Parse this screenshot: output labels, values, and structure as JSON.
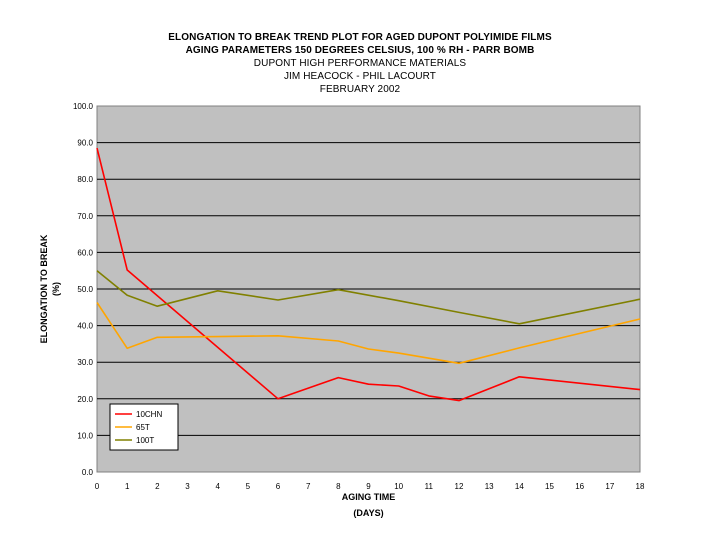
{
  "titles": {
    "line1": "ELONGATION TO BREAK TREND PLOT FOR AGED DUPONT POLYIMIDE FILMS",
    "line2": "AGING PARAMETERS 150 DEGREES CELSIUS, 100 % RH - PARR BOMB",
    "line3": "DUPONT HIGH PERFORMANCE MATERIALS",
    "line4": "JIM HEACOCK - PHIL LACOURT",
    "line5": "FEBRUARY 2002"
  },
  "colors": {
    "plot_background": "#c0c0c0",
    "gridline": "#000000",
    "10CHN": "#ff0000",
    "65T": "#ffa500",
    "100T": "#808000"
  },
  "chart_data": {
    "type": "line",
    "xlabel": "AGING TIME",
    "xlabel_unit": "(DAYS)",
    "ylabel": "ELONGATION TO BREAK",
    "ylabel_unit": "(%)",
    "xlim": [
      0,
      18
    ],
    "ylim": [
      0,
      100
    ],
    "x_ticks": [
      0,
      1,
      2,
      3,
      4,
      5,
      6,
      7,
      8,
      9,
      10,
      11,
      12,
      13,
      14,
      15,
      16,
      17,
      18
    ],
    "y_ticks": [
      "0.0",
      "10.0",
      "20.0",
      "30.0",
      "40.0",
      "50.0",
      "60.0",
      "70.0",
      "80.0",
      "90.0",
      "100.0"
    ],
    "gridlines": "horizontal",
    "legend_position": "bottom-left",
    "series": [
      {
        "name": "10CHN",
        "color": "#ff0000",
        "points": [
          [
            0,
            88.5
          ],
          [
            1,
            55.2
          ],
          [
            6,
            20.0
          ],
          [
            8,
            25.8
          ],
          [
            9,
            24.0
          ],
          [
            10,
            23.5
          ],
          [
            11,
            20.8
          ],
          [
            12,
            19.5
          ],
          [
            14,
            26.0
          ],
          [
            18,
            22.5
          ]
        ]
      },
      {
        "name": "65T",
        "color": "#ffa500",
        "points": [
          [
            0,
            46.3
          ],
          [
            1,
            33.8
          ],
          [
            2,
            36.8
          ],
          [
            4,
            37.0
          ],
          [
            6,
            37.2
          ],
          [
            8,
            35.8
          ],
          [
            9,
            33.6
          ],
          [
            10,
            32.5
          ],
          [
            12,
            29.7
          ],
          [
            14,
            33.9
          ],
          [
            18,
            41.8
          ]
        ]
      },
      {
        "name": "100T",
        "color": "#808000",
        "points": [
          [
            0,
            55.0
          ],
          [
            1,
            48.3
          ],
          [
            2,
            45.3
          ],
          [
            4,
            49.5
          ],
          [
            6,
            47.0
          ],
          [
            8,
            49.8
          ],
          [
            10,
            46.8
          ],
          [
            12,
            43.6
          ],
          [
            14,
            40.5
          ],
          [
            18,
            47.2
          ]
        ]
      }
    ]
  }
}
